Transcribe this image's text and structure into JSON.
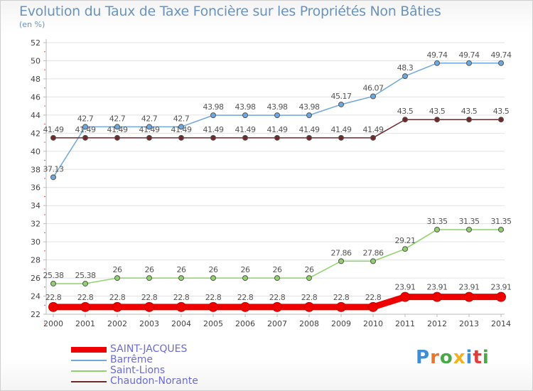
{
  "title": "Evolution du Taux de Taxe Foncière sur les Propriétés Non Bâties",
  "unit_label": "(en %)",
  "logo": {
    "text": "Proxiti",
    "colors": [
      "#3a8fd6",
      "#e8762d",
      "#4aa84a",
      "#f2b21f",
      "#3a8fd6",
      "#e23d3d",
      "#4aa84a"
    ]
  },
  "chart_data": {
    "type": "line",
    "x": [
      "2000",
      "2001",
      "2002",
      "2003",
      "2004",
      "2005",
      "2006",
      "2007",
      "2008",
      "2009",
      "2010",
      "2011",
      "2012",
      "2013",
      "2014"
    ],
    "ylim": [
      22,
      52
    ],
    "yticks": [
      22,
      24,
      26,
      28,
      30,
      32,
      34,
      36,
      38,
      40,
      42,
      44,
      46,
      48,
      50,
      52
    ],
    "grid": "horizontal",
    "legend_position": "bottom-left",
    "series": [
      {
        "name": "SAINT-JACQUES",
        "color": "#ee0000",
        "values": [
          22.8,
          22.8,
          22.8,
          22.8,
          22.8,
          22.8,
          22.8,
          22.8,
          22.8,
          22.8,
          22.8,
          23.91,
          23.91,
          23.91,
          23.91
        ],
        "labels": [
          "22.8",
          "22.8",
          "22.8",
          "22.8",
          "22.8",
          "22.8",
          "22.8",
          "22.8",
          "22.8",
          "22.8",
          "22.8",
          "23.91",
          "23.91",
          "23.91",
          "23.91"
        ]
      },
      {
        "name": "Barrême",
        "color": "#6fa8dc",
        "values": [
          37.13,
          42.7,
          42.7,
          42.7,
          42.7,
          43.98,
          43.98,
          43.98,
          43.98,
          45.17,
          46.07,
          48.3,
          49.74,
          49.74,
          49.74
        ],
        "labels": [
          "37.13",
          "42.7",
          "42.7",
          "42.7",
          "42.7",
          "43.98",
          "43.98",
          "43.98",
          "43.98",
          "45.17",
          "46.07",
          "48.3",
          "49.74",
          "49.74",
          "49.74"
        ]
      },
      {
        "name": "Saint-Lions",
        "color": "#8fd16a",
        "values": [
          25.38,
          25.38,
          26,
          26,
          26,
          26,
          26,
          26,
          26,
          27.86,
          27.86,
          29.21,
          31.35,
          31.35,
          31.35
        ],
        "labels": [
          "25.38",
          "25.38",
          "26",
          "26",
          "26",
          "26",
          "26",
          "26",
          "26",
          "27.86",
          "27.86",
          "29.21",
          "31.35",
          "31.35",
          "31.35"
        ]
      },
      {
        "name": "Chaudon-Norante",
        "color": "#6e2a2a",
        "values": [
          41.49,
          41.49,
          41.49,
          41.49,
          41.49,
          41.49,
          41.49,
          41.49,
          41.49,
          41.49,
          41.49,
          43.5,
          43.5,
          43.5,
          43.5
        ],
        "labels": [
          "41.49",
          "41.49",
          "41.49",
          "41.49",
          "41.49",
          "41.49",
          "41.49",
          "41.49",
          "41.49",
          "41.49",
          "41.49",
          "43.5",
          "43.5",
          "43.5",
          "43.5"
        ]
      }
    ]
  }
}
